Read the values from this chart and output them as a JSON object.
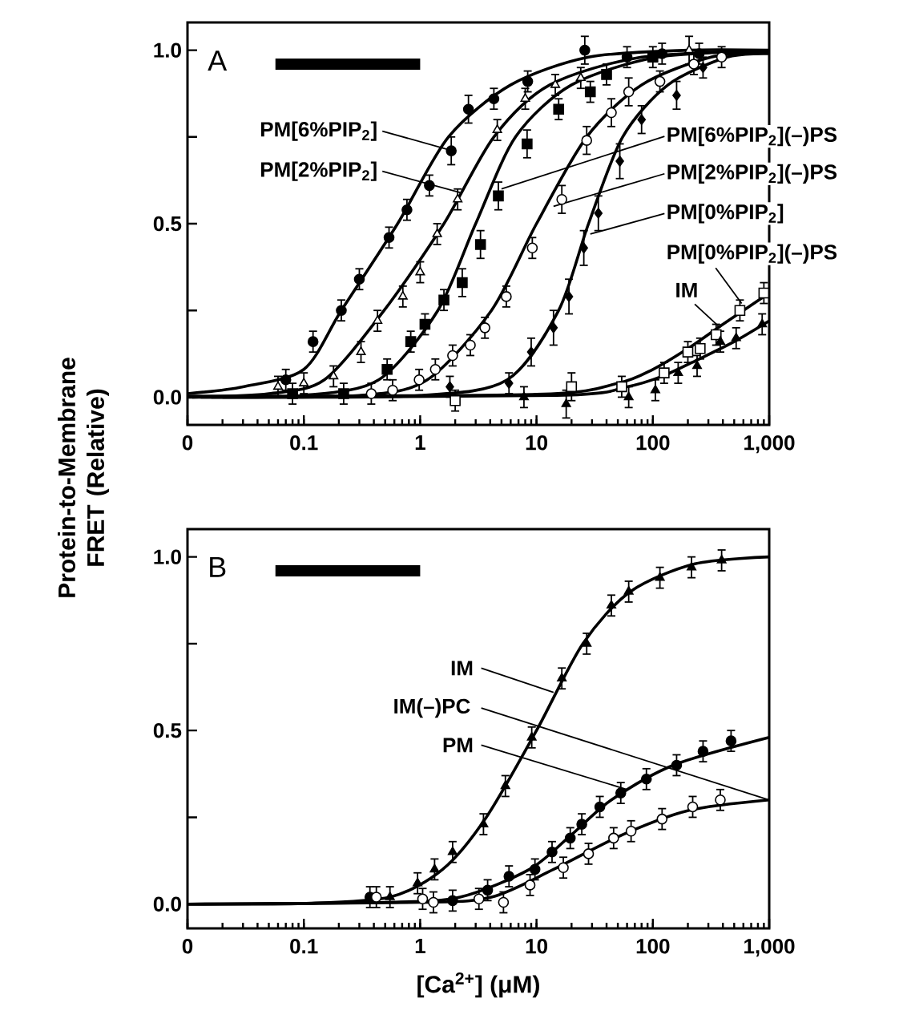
{
  "chart_data": [
    {
      "type": "line",
      "title": "A",
      "ylabel": "Protein-to-Membrane FRET (Relative)",
      "log": "x",
      "xlim": [
        0.01,
        1000
      ],
      "ylim": [
        -0.08,
        1.08
      ],
      "xticks": [
        {
          "value": 0.01,
          "label": "0"
        },
        {
          "value": 0.1,
          "label": "0.1"
        },
        1,
        10,
        100,
        {
          "value": 1000,
          "label": "1,000"
        }
      ],
      "yticks": [
        {
          "value": 0,
          "label": "0.0"
        },
        {
          "value": 0.25,
          "label": null
        },
        {
          "value": 0.5,
          "label": "0.5"
        },
        {
          "value": 0.75,
          "label": null
        },
        {
          "value": 1,
          "label": "1.0"
        }
      ],
      "annotations": [
        {
          "text": "PM[6%PIP$_{2}$]",
          "x": 1.9,
          "y": 0.71
        },
        {
          "text": "PM[2%PIP$_{2}$]",
          "x": 2.2,
          "y": 0.59
        },
        {
          "text": "PM[6%PIP$_{2}$](–)PS",
          "x": 5,
          "y": 0.6
        },
        {
          "text": "PM[2%PIP$_{2}$](–)PS",
          "x": 14,
          "y": 0.55
        },
        {
          "text": "PM[0%PIP$_{2}$]",
          "x": 29,
          "y": 0.47
        },
        {
          "text": "PM[0%PIP$_{2}$](–)PS",
          "x": 580,
          "y": 0.27
        },
        {
          "text": "IM",
          "x": 380,
          "y": 0.2
        }
      ],
      "series": [
        {
          "type": "scatter",
          "marker": "circle",
          "color": "#000000",
          "x": [
            0.07,
            0.12,
            0.21,
            0.3,
            0.54,
            0.77,
            1.2,
            1.85,
            2.6,
            4.3,
            8.4,
            26,
            60,
            120,
            250
          ],
          "values": [
            0.05,
            0.16,
            0.25,
            0.34,
            0.46,
            0.54,
            0.61,
            0.71,
            0.83,
            0.86,
            0.91,
            1.0,
            0.98,
            0.99,
            0.99
          ],
          "errors": [
            0.03,
            0.03,
            0.03,
            0.03,
            0.03,
            0.03,
            0.03,
            0.04,
            0.04,
            0.03,
            0.03,
            0.04,
            0.03,
            0.03,
            0.03
          ]
        },
        {
          "color": "#000000",
          "x": [
            0.01,
            0.03,
            0.1,
            0.21,
            0.64,
            1.75,
            6,
            28,
            200,
            1000
          ],
          "values": [
            0.01,
            0.03,
            0.08,
            0.25,
            0.5,
            0.75,
            0.9,
            0.98,
            1.0,
            1.0
          ]
        },
        {
          "type": "scatter",
          "marker": "triangle",
          "color": "#ffffff",
          "x": [
            0.06,
            0.1,
            0.18,
            0.31,
            0.43,
            0.71,
            1.0,
            1.4,
            2.1,
            4.6,
            8,
            14.5,
            24,
            205
          ],
          "values": [
            0.03,
            0.04,
            0.06,
            0.13,
            0.22,
            0.29,
            0.36,
            0.47,
            0.57,
            0.77,
            0.86,
            0.9,
            0.92,
            1.0
          ],
          "errors": [
            0.03,
            0.03,
            0.03,
            0.03,
            0.03,
            0.03,
            0.03,
            0.03,
            0.03,
            0.03,
            0.03,
            0.03,
            0.03,
            0.04
          ]
        },
        {
          "color": "#000000",
          "x": [
            0.011,
            0.05,
            0.15,
            0.49,
            1.6,
            4.3,
            13,
            80,
            1000
          ],
          "values": [
            0,
            0.01,
            0.05,
            0.25,
            0.5,
            0.75,
            0.9,
            0.98,
            0.999
          ]
        },
        {
          "type": "scatter",
          "marker": "square",
          "color": "#000000",
          "x": [
            0.08,
            0.22,
            0.52,
            0.83,
            1.1,
            1.6,
            2.3,
            3.3,
            4.7,
            8.3,
            15.5,
            29,
            40,
            100
          ],
          "values": [
            0.01,
            0.01,
            0.08,
            0.16,
            0.21,
            0.28,
            0.33,
            0.44,
            0.58,
            0.73,
            0.83,
            0.88,
            0.93,
            0.98
          ],
          "errors": [
            0.03,
            0.03,
            0.03,
            0.03,
            0.03,
            0.03,
            0.04,
            0.04,
            0.04,
            0.04,
            0.03,
            0.03,
            0.03,
            0.03
          ]
        },
        {
          "color": "#000000",
          "x": [
            0.013,
            0.1,
            0.44,
            1.42,
            3.0,
            6.6,
            20,
            110,
            1000
          ],
          "values": [
            0,
            0.005,
            0.05,
            0.25,
            0.5,
            0.75,
            0.9,
            0.98,
            0.998
          ]
        },
        {
          "type": "scatter",
          "marker": "circle",
          "color": "#ffffff",
          "x": [
            0.38,
            0.58,
            0.98,
            1.35,
            1.9,
            2.7,
            3.6,
            5.5,
            9.2,
            16.5,
            27,
            44,
            62,
            115,
            225,
            390
          ],
          "values": [
            0.01,
            0.02,
            0.05,
            0.08,
            0.12,
            0.15,
            0.2,
            0.29,
            0.43,
            0.57,
            0.74,
            0.82,
            0.88,
            0.91,
            0.96,
            0.98
          ],
          "errors": [
            0.03,
            0.03,
            0.03,
            0.03,
            0.03,
            0.03,
            0.03,
            0.03,
            0.03,
            0.04,
            0.04,
            0.04,
            0.04,
            0.03,
            0.03,
            0.03
          ]
        },
        {
          "color": "#000000",
          "x": [
            0.016,
            0.3,
            1.15,
            4.1,
            10,
            27,
            80,
            316,
            1000
          ],
          "values": [
            0,
            0.005,
            0.05,
            0.25,
            0.5,
            0.75,
            0.9,
            0.98,
            0.995
          ]
        },
        {
          "type": "scatter",
          "marker": "diamond",
          "color": "#000000",
          "x": [
            1.8,
            5.8,
            9,
            14,
            19,
            25.5,
            34,
            52,
            80,
            160,
            270
          ],
          "values": [
            0.03,
            0.04,
            0.13,
            0.2,
            0.29,
            0.43,
            0.53,
            0.68,
            0.8,
            0.87,
            0.95
          ],
          "errors": [
            0.03,
            0.03,
            0.04,
            0.05,
            0.05,
            0.05,
            0.05,
            0.05,
            0.04,
            0.04,
            0.03
          ]
        },
        {
          "color": "#000000",
          "x": [
            0.02,
            1,
            5.6,
            15.5,
            28,
            55,
            135,
            435,
            1000
          ],
          "values": [
            0,
            0.005,
            0.05,
            0.25,
            0.5,
            0.75,
            0.9,
            0.98,
            0.99
          ]
        },
        {
          "type": "scatter",
          "marker": "square",
          "color": "#ffffff",
          "x": [
            2,
            20,
            54,
            125,
            200,
            255,
            350,
            560,
            900
          ],
          "values": [
            -0.01,
            0.03,
            0.03,
            0.07,
            0.13,
            0.14,
            0.18,
            0.25,
            0.3
          ],
          "errors": [
            0.03,
            0.04,
            0.03,
            0.03,
            0.03,
            0.03,
            0.03,
            0.03,
            0.03
          ]
        },
        {
          "color": "#000000",
          "x": [
            0.01,
            10,
            50,
            100,
            200,
            400,
            1000
          ],
          "values": [
            0.003,
            0.008,
            0.04,
            0.08,
            0.14,
            0.21,
            0.3
          ]
        },
        {
          "type": "scatter",
          "marker": "triangle",
          "color": "#000000",
          "x": [
            7.8,
            18,
            62,
            105,
            165,
            240,
            380,
            520,
            870
          ],
          "values": [
            0,
            -0.02,
            0,
            0.02,
            0.07,
            0.09,
            0.16,
            0.17,
            0.21
          ],
          "errors": [
            0.03,
            0.04,
            0.03,
            0.03,
            0.03,
            0.03,
            0.03,
            0.03,
            0.03
          ]
        },
        {
          "color": "#000000",
          "x": [
            0.01,
            15,
            60,
            120,
            250,
            500,
            1000
          ],
          "values": [
            0,
            0.005,
            0.03,
            0.06,
            0.11,
            0.16,
            0.22
          ]
        },
        {
          "color": "#000000",
          "x": [
            0.057,
            1
          ],
          "values": [
            0.96,
            0.96
          ]
        }
      ]
    },
    {
      "type": "line",
      "title": "B",
      "xlabel": "[Ca$^{2+}$] (μM)",
      "log": "x",
      "xlim": [
        0.01,
        1000
      ],
      "ylim": [
        -0.07,
        1.08
      ],
      "xticks": [
        {
          "value": 0.01,
          "label": "0"
        },
        {
          "value": 0.1,
          "label": "0.1"
        },
        1,
        10,
        100,
        {
          "value": 1000,
          "label": "1,000"
        }
      ],
      "yticks": [
        {
          "value": 0,
          "label": "0.0"
        },
        {
          "value": 0.25,
          "label": null
        },
        {
          "value": 0.5,
          "label": "0.5"
        },
        {
          "value": 0.75,
          "label": null
        },
        {
          "value": 1,
          "label": "1.0"
        }
      ],
      "annotations": [
        {
          "text": "IM",
          "x": 14,
          "y": 0.61
        },
        {
          "text": "IM(–)PC",
          "x": 1000,
          "y": 0.3
        },
        {
          "text": "PM",
          "x": 60,
          "y": 0.33
        }
      ],
      "series": [
        {
          "type": "scatter",
          "marker": "triangle",
          "color": "#000000",
          "x": [
            0.55,
            0.95,
            1.33,
            1.9,
            3.5,
            5.4,
            9.1,
            16.5,
            27,
            44,
            62,
            115,
            215,
            390
          ],
          "values": [
            0.02,
            0.06,
            0.1,
            0.15,
            0.23,
            0.34,
            0.48,
            0.65,
            0.75,
            0.86,
            0.9,
            0.94,
            0.97,
            0.99
          ],
          "errors": [
            0.03,
            0.03,
            0.03,
            0.03,
            0.03,
            0.03,
            0.03,
            0.03,
            0.03,
            0.03,
            0.03,
            0.03,
            0.03,
            0.03
          ]
        },
        {
          "color": "#000000",
          "x": [
            0.01,
            0.1,
            0.55,
            1.56,
            3.7,
            10,
            25,
            64,
            230,
            1000
          ],
          "values": [
            0,
            0.002,
            0.02,
            0.1,
            0.25,
            0.5,
            0.75,
            0.9,
            0.98,
            1.0
          ]
        },
        {
          "type": "scatter",
          "marker": "circle",
          "color": "#000000",
          "x": [
            0.37,
            1.9,
            3.8,
            5.8,
            9.7,
            13.6,
            19.5,
            24.5,
            35,
            53,
            88,
            160,
            270,
            470
          ],
          "values": [
            0.02,
            0.01,
            0.04,
            0.08,
            0.1,
            0.15,
            0.19,
            0.23,
            0.28,
            0.32,
            0.36,
            0.4,
            0.44,
            0.47
          ],
          "errors": [
            0.03,
            0.03,
            0.03,
            0.03,
            0.03,
            0.03,
            0.03,
            0.03,
            0.03,
            0.03,
            0.03,
            0.03,
            0.03,
            0.03
          ]
        },
        {
          "color": "#000000",
          "x": [
            0.01,
            0.5,
            2.2,
            8.7,
            20,
            44,
            150,
            1000
          ],
          "values": [
            0,
            0.005,
            0.02,
            0.1,
            0.2,
            0.3,
            0.4,
            0.48
          ]
        },
        {
          "type": "scatter",
          "marker": "circle",
          "color": "#ffffff",
          "x": [
            0.42,
            1.05,
            1.3,
            3.2,
            5.2,
            8.8,
            17,
            28,
            46,
            65,
            120,
            220,
            380
          ],
          "values": [
            0.02,
            0.015,
            0.005,
            0.015,
            0.005,
            0.055,
            0.105,
            0.145,
            0.19,
            0.21,
            0.245,
            0.28,
            0.3
          ],
          "errors": [
            0.03,
            0.03,
            0.03,
            0.03,
            0.03,
            0.03,
            0.03,
            0.03,
            0.03,
            0.03,
            0.03,
            0.03,
            0.03
          ]
        },
        {
          "color": "#000000",
          "x": [
            0.01,
            1,
            4.1,
            14,
            55,
            205,
            1000
          ],
          "values": [
            0,
            0.005,
            0.02,
            0.1,
            0.2,
            0.27,
            0.3
          ]
        },
        {
          "color": "#000000",
          "x": [
            0.057,
            1
          ],
          "values": [
            0.96,
            0.96
          ]
        }
      ]
    }
  ]
}
